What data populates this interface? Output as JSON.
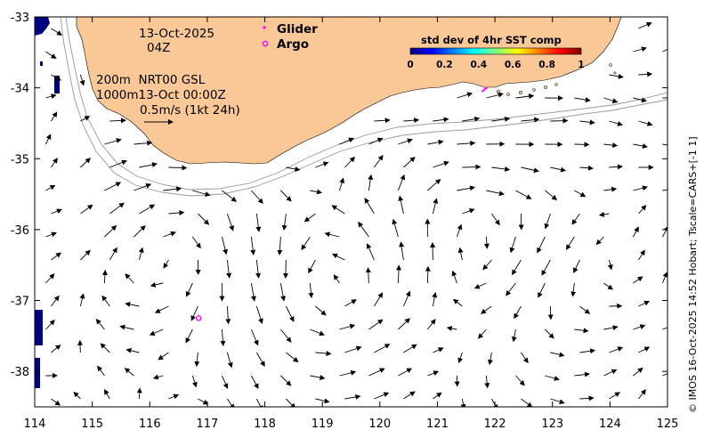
{
  "map": {
    "type": "ocean current vector map",
    "lon_range": [
      114,
      125
    ],
    "lat_range": [
      -38.5,
      -33
    ],
    "x_ticks": [
      "114",
      "115",
      "116",
      "117",
      "118",
      "119",
      "120",
      "121",
      "122",
      "123",
      "124",
      "125"
    ],
    "y_ticks": [
      "-33",
      "-34",
      "-35",
      "-36",
      "-37",
      "-38"
    ],
    "land_color": "#fac896",
    "colors": {
      "glider": "#ff00ff",
      "argo": "#ff00ff",
      "missing_sst": "#000080",
      "isobath": "#999999",
      "arrow": "#000000"
    }
  },
  "header_text": {
    "date": "13-Oct-2025",
    "hour": "04Z",
    "depth_line1": "200m  NRT00 GSL",
    "depth_line2": "1000m13-Oct 00:00Z",
    "scale_label": "0.5m/s (1kt 24h)"
  },
  "legend": {
    "glider_label": "Glider",
    "argo_label": "Argo"
  },
  "colorbar": {
    "title": "std dev of 4hr SST comp",
    "ticks": [
      "0",
      "0.2",
      "0.4",
      "0.6",
      "0.8",
      "1"
    ],
    "colors": [
      "#00007f",
      "#0000ff",
      "#007fff",
      "#00ffff",
      "#7fff7f",
      "#ffff00",
      "#ff7f00",
      "#ff0000",
      "#7f0000"
    ]
  },
  "argo_floats": [
    {
      "lon": 116.85,
      "lat": -37.25
    }
  ],
  "gliders": [
    {
      "lon": 121.82,
      "lat": -34.03
    }
  ],
  "credit": "© IMOS 16-Oct-2025 14:52 Hobart; Tscale=CARS+[-1 1]"
}
